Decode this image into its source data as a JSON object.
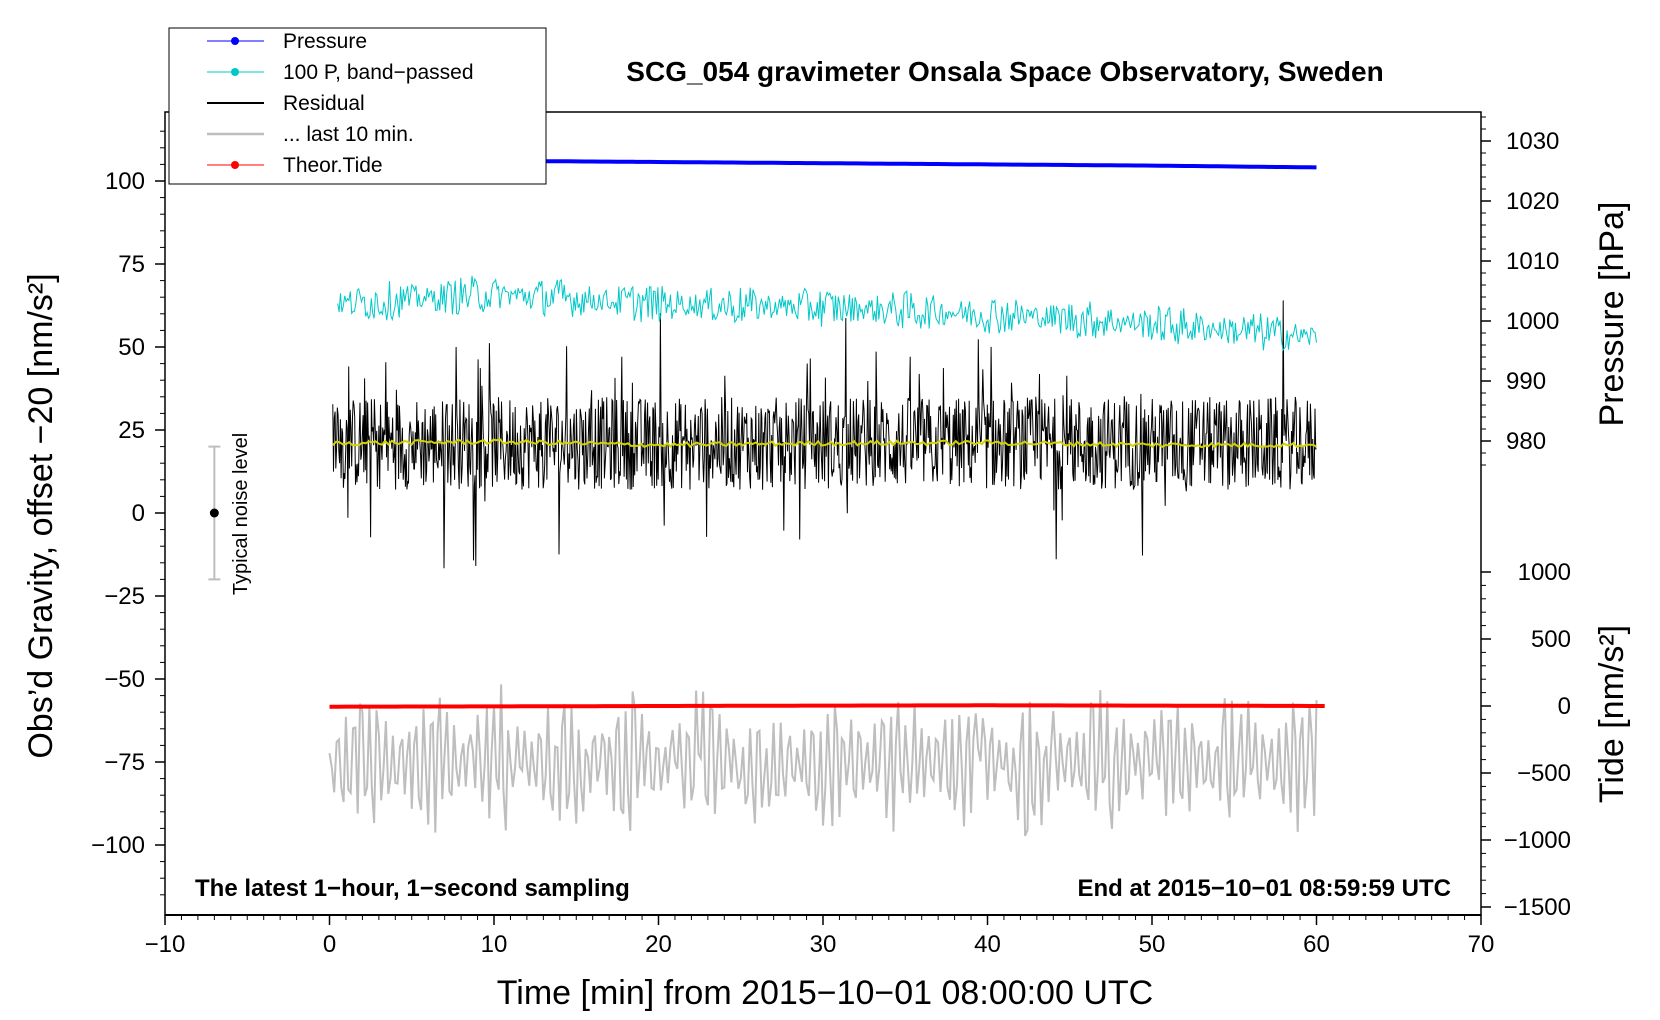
{
  "chart_data": {
    "type": "line",
    "title": "SCG_054 gravimeter Onsala Space Observatory, Sweden",
    "xlabel": "Time [min] from 2015−10−01 08:00:00 UTC",
    "ylabel_left": "Obs’d Gravity, offset −20 [nm/s²]",
    "ylabel_right_top": "Pressure [hPa]",
    "ylabel_right_bottom": "Tide [nm/s²]",
    "xlim": [
      -10,
      70
    ],
    "ylim_left": [
      -120,
      120
    ],
    "ylim_pressure_visible": [
      975,
      1035
    ],
    "ylim_tide": [
      -1500,
      1200
    ],
    "x_ticks": [
      "−10",
      "0",
      "10",
      "20",
      "30",
      "40",
      "50",
      "60",
      "70"
    ],
    "x_tick_values": [
      -10,
      0,
      10,
      20,
      30,
      40,
      50,
      60,
      70
    ],
    "y_left_ticks": [
      "100",
      "75",
      "50",
      "25",
      "0",
      "−25",
      "−50",
      "−75",
      "−100"
    ],
    "y_left_tick_values": [
      100,
      75,
      50,
      25,
      0,
      -25,
      -50,
      -75,
      -100
    ],
    "y_pressure_ticks": [
      "1030",
      "1020",
      "1010",
      "1000",
      "990",
      "980"
    ],
    "y_pressure_tick_values": [
      1030,
      1020,
      1010,
      1000,
      990,
      980
    ],
    "y_tide_ticks": [
      "1000",
      "500",
      "0",
      "−500",
      "−1000",
      "−1500"
    ],
    "y_tide_tick_values": [
      1000,
      500,
      0,
      -500,
      -1000,
      -1500
    ],
    "legend": [
      {
        "label": "Pressure",
        "color": "#0000ff",
        "marker": "dot"
      },
      {
        "label": "100 P, band−passed",
        "color": "#00c8c8",
        "marker": "dot"
      },
      {
        "label": "Residual",
        "color": "#000000",
        "marker": "none"
      },
      {
        "label": "... last 10 min.",
        "color": "#bebebe",
        "marker": "none"
      },
      {
        "label": "Theor.Tide",
        "color": "#ff0000",
        "marker": "dot"
      }
    ],
    "legend_position": "top-left",
    "annotations": {
      "bottom_left": "The latest 1−hour, 1−second sampling",
      "bottom_right": "End at 2015−10−01 08:59:59 UTC",
      "noise_label": "Typical noise level"
    },
    "noise_bar": {
      "x": -7,
      "center": 0,
      "half_range": 20
    },
    "series": [
      {
        "name": "Pressure",
        "axis": "pressure_hPa",
        "color": "#0000ff",
        "x": [
          0,
          10,
          20,
          30,
          40,
          50,
          60
        ],
        "values": [
          1027.0,
          1026.7,
          1026.5,
          1026.3,
          1026.1,
          1025.9,
          1025.6
        ]
      },
      {
        "name": "100 P, band−passed",
        "axis": "gravity_nm_s2",
        "color": "#00c8c8",
        "x": [
          0.5,
          10,
          20,
          30,
          40,
          50,
          60
        ],
        "values": [
          63,
          66,
          63,
          62,
          60,
          57,
          53
        ],
        "spread": 6
      },
      {
        "name": "Residual",
        "axis": "gravity_nm_s2",
        "color": "#000000",
        "x": [
          0.2,
          10,
          20,
          30,
          40,
          50,
          60
        ],
        "values": [
          21,
          21,
          21,
          21,
          21,
          21,
          21
        ],
        "spread": 14
      },
      {
        "name": "Residual (smoothed)",
        "axis": "gravity_nm_s2",
        "color": "#d2d200",
        "x": [
          0.2,
          10,
          20,
          30,
          40,
          50,
          60
        ],
        "values": [
          21,
          21.5,
          20.5,
          21,
          21.2,
          20.5,
          20.5
        ]
      },
      {
        "name": "... last 10 min.",
        "axis": "gravity_nm_s2",
        "color": "#bebebe",
        "x": [
          0,
          60
        ],
        "values": [
          -75,
          -75
        ],
        "min": -101,
        "max": -50
      },
      {
        "name": "Theor.Tide",
        "axis": "tide_nm_s2",
        "color": "#ff0000",
        "x": [
          0,
          10,
          20,
          30,
          40,
          50,
          60.5
        ],
        "values": [
          -5,
          -3,
          0,
          3,
          5,
          3,
          0
        ]
      }
    ]
  }
}
